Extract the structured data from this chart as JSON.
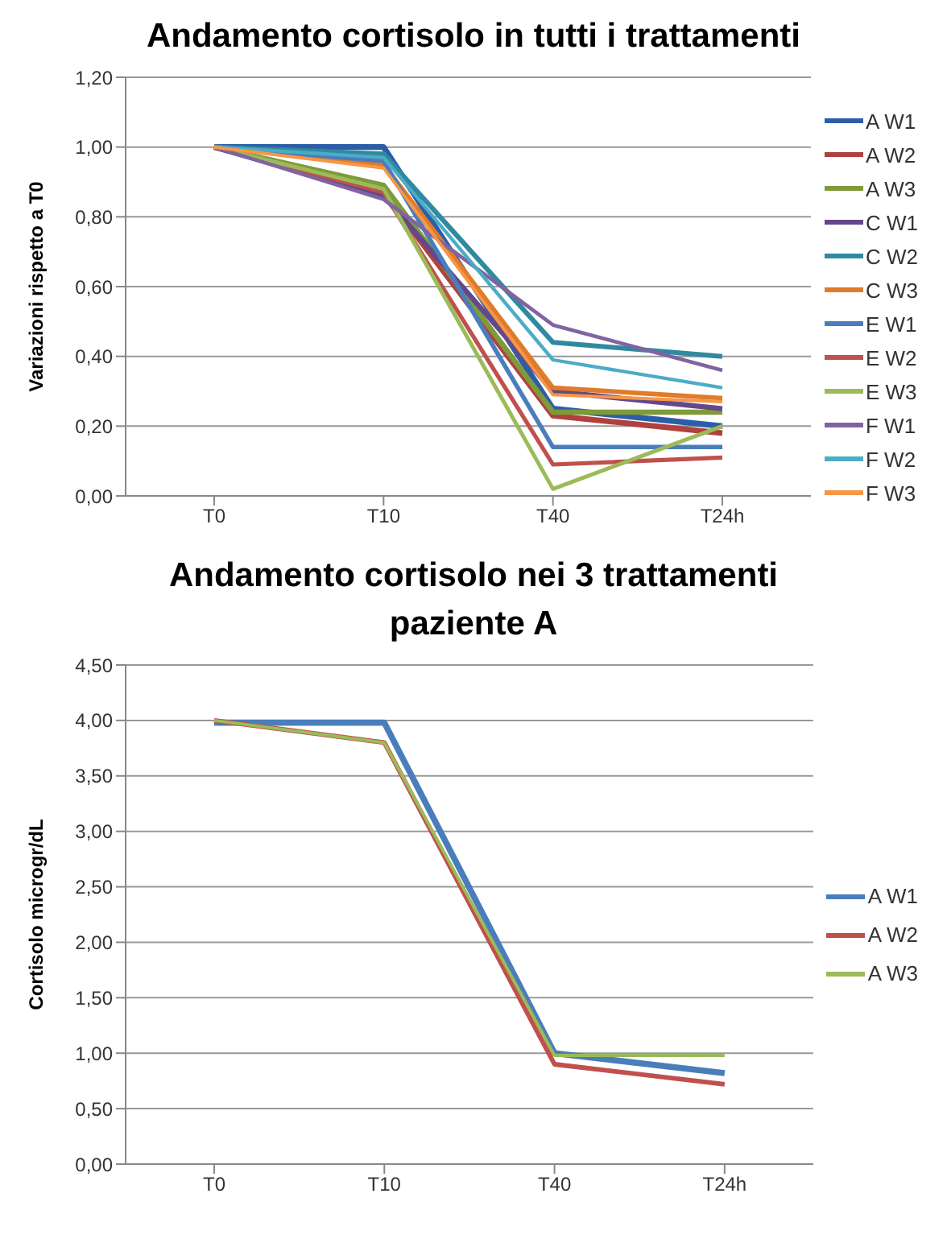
{
  "chart_data": [
    {
      "type": "line",
      "title": "Andamento cortisolo in tutti i trattamenti",
      "ylabel": "Variazioni rispetto a T0",
      "categories": [
        "T0",
        "T10",
        "T40",
        "T24h"
      ],
      "series": [
        {
          "name": "A W1",
          "color": "#2c5ea8",
          "values": [
            1.0,
            1.0,
            0.25,
            0.2
          ]
        },
        {
          "name": "A W2",
          "color": "#b0413e",
          "values": [
            1.0,
            0.87,
            0.23,
            0.18
          ]
        },
        {
          "name": "A W3",
          "color": "#7f9a3a",
          "values": [
            1.0,
            0.89,
            0.24,
            0.24
          ]
        },
        {
          "name": "C W1",
          "color": "#64488a",
          "values": [
            1.0,
            0.86,
            0.3,
            0.25
          ]
        },
        {
          "name": "C W2",
          "color": "#2f8aa0",
          "values": [
            1.0,
            0.98,
            0.44,
            0.4
          ]
        },
        {
          "name": "C W3",
          "color": "#e07b2a",
          "values": [
            1.0,
            0.95,
            0.31,
            0.28
          ]
        },
        {
          "name": "E W1",
          "color": "#4a7ebb",
          "values": [
            1.0,
            0.96,
            0.14,
            0.14
          ]
        },
        {
          "name": "E W2",
          "color": "#c0504d",
          "values": [
            1.0,
            0.87,
            0.09,
            0.11
          ]
        },
        {
          "name": "E W3",
          "color": "#9bbb59",
          "values": [
            1.0,
            0.88,
            0.02,
            0.2
          ]
        },
        {
          "name": "F W1",
          "color": "#8064a2",
          "values": [
            1.0,
            0.85,
            0.49,
            0.36
          ]
        },
        {
          "name": "F W2",
          "color": "#4bacc6",
          "values": [
            1.0,
            0.97,
            0.39,
            0.31
          ]
        },
        {
          "name": "F W3",
          "color": "#f79646",
          "values": [
            1.0,
            0.94,
            0.29,
            0.27
          ]
        }
      ],
      "ylim": [
        0,
        1.2
      ],
      "yticks": [
        {
          "value": 0,
          "label": "0,00"
        },
        {
          "value": 0.2,
          "label": "0,20"
        },
        {
          "value": 0.4,
          "label": "0,40"
        },
        {
          "value": 0.6,
          "label": "0,60"
        },
        {
          "value": 0.8,
          "label": "0,80"
        },
        {
          "value": 1,
          "label": "1,00"
        },
        {
          "value": 1.2,
          "label": "1,20"
        }
      ],
      "grid": "y",
      "legend": "right",
      "marker": "none",
      "line_style": "solid"
    },
    {
      "type": "line",
      "title": "Andamento cortisolo nei 3 trattamenti paziente A",
      "ylabel": "Cortisolo microgr/dL",
      "categories": [
        "T0",
        "T10",
        "T40",
        "T24h"
      ],
      "series": [
        {
          "name": "A W1",
          "color": "#4a7ebb",
          "values": [
            3.98,
            3.98,
            1.0,
            0.82
          ]
        },
        {
          "name": "A W2",
          "color": "#c0504d",
          "values": [
            4.0,
            3.8,
            0.9,
            0.72
          ]
        },
        {
          "name": "A W3",
          "color": "#9bbb59",
          "values": [
            4.0,
            3.8,
            0.98,
            0.98
          ]
        }
      ],
      "ylim": [
        0,
        4.5
      ],
      "yticks": [
        {
          "value": 0,
          "label": "0,00"
        },
        {
          "value": 0.5,
          "label": "0,50"
        },
        {
          "value": 1,
          "label": "1,00"
        },
        {
          "value": 1.5,
          "label": "1,50"
        },
        {
          "value": 2,
          "label": "2,00"
        },
        {
          "value": 2.5,
          "label": "2,50"
        },
        {
          "value": 3,
          "label": "3,00"
        },
        {
          "value": 3.5,
          "label": "3,50"
        },
        {
          "value": 4,
          "label": "4,00"
        },
        {
          "value": 4.5,
          "label": "4,50"
        }
      ],
      "grid": "y",
      "legend": "right",
      "marker": "none",
      "line_style": "solid"
    }
  ]
}
